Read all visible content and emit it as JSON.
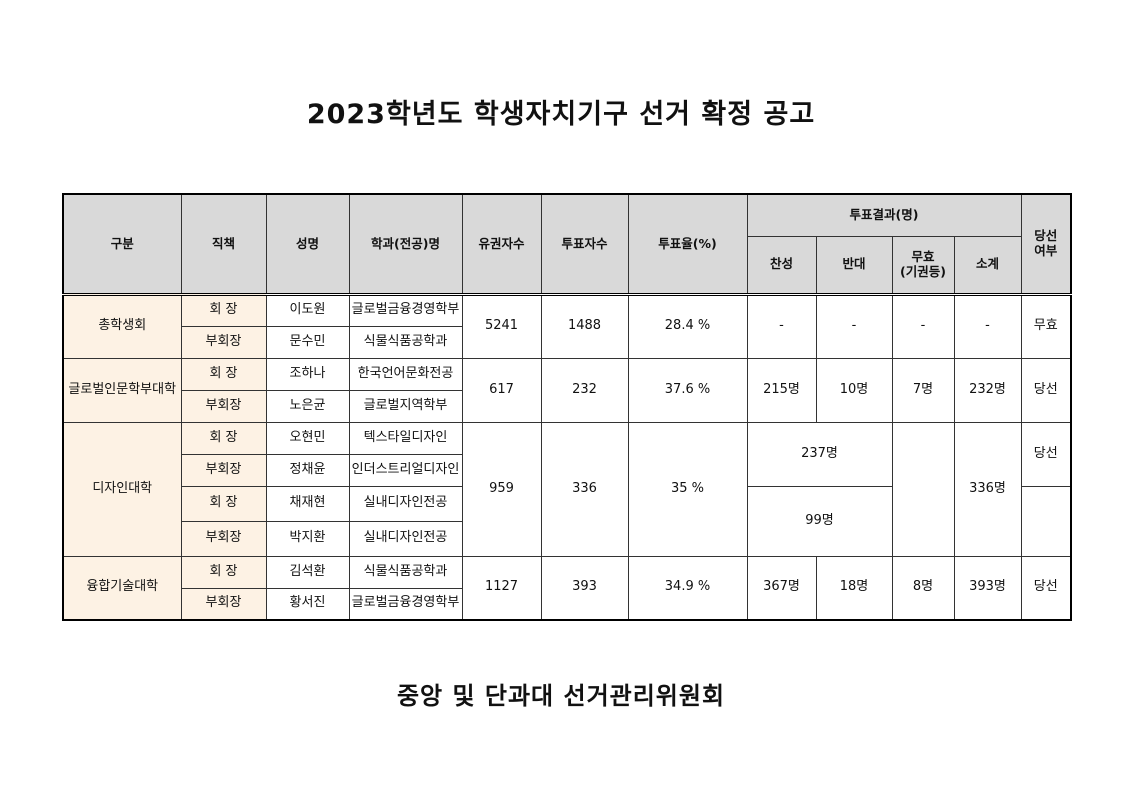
{
  "title": "2023학년도 학생자치기구 선거 확정 공고",
  "table": {
    "header": {
      "group": "구분",
      "position": "직책",
      "name": "성명",
      "dept": "학과(전공)명",
      "eligible": "유권자수",
      "voters": "투표자수",
      "rate": "투표율(%)",
      "result": "투표결과(명)",
      "yes": "찬성",
      "no": "반대",
      "invalid": [
        "무효",
        "(기권등)"
      ],
      "subtotal": "소계",
      "elected": [
        "당선",
        "여부"
      ]
    },
    "rows": [
      {
        "group": "총학생회",
        "candidates": [
          {
            "position": "회 장",
            "name": "이도원",
            "dept": "글로벌금융경영학부"
          },
          {
            "position": "부회장",
            "name": "문수민",
            "dept": "식물식품공학과"
          }
        ],
        "eligible": 5241,
        "voters": 1488,
        "rate": "28.4 %",
        "yes": "-",
        "no": "-",
        "invalid": "-",
        "subtotal": "-",
        "elected": "무효"
      },
      {
        "group": "글로벌인문학부대학",
        "candidates": [
          {
            "position": "회 장",
            "name": "조하나",
            "dept": "한국언어문화전공"
          },
          {
            "position": "부회장",
            "name": "노은균",
            "dept": "글로벌지역학부"
          }
        ],
        "eligible": 617,
        "voters": 232,
        "rate": "37.6 %",
        "yes": "215명",
        "no": "10명",
        "invalid": "7명",
        "subtotal": "232명",
        "elected": "당선"
      },
      {
        "group": "디자인대학",
        "candidates": [
          {
            "position": "회 장",
            "name": "오현민",
            "dept": "텍스타일디자인"
          },
          {
            "position": "부회장",
            "name": "정채윤",
            "dept": "인더스트리얼디자인"
          },
          {
            "position": "회 장",
            "name": "채재현",
            "dept": "실내디자인전공"
          },
          {
            "position": "부회장",
            "name": "박지환",
            "dept": "실내디자인전공"
          }
        ],
        "eligible": 959,
        "voters": 336,
        "rate": "35 %",
        "tickets": [
          {
            "votes": "237명",
            "elected": "당선"
          },
          {
            "votes": "99명"
          }
        ],
        "subtotal": "336명"
      },
      {
        "group": "융합기술대학",
        "candidates": [
          {
            "position": "회 장",
            "name": "김석환",
            "dept": "식물식품공학과"
          },
          {
            "position": "부회장",
            "name": "황서진",
            "dept": "글로벌금융경영학부"
          }
        ],
        "eligible": 1127,
        "voters": 393,
        "rate": "34.9 %",
        "yes": "367명",
        "no": "18명",
        "invalid": "8명",
        "subtotal": "393명",
        "elected": "당선"
      }
    ]
  },
  "footer": "중앙 및 단과대 선거관리위원회"
}
